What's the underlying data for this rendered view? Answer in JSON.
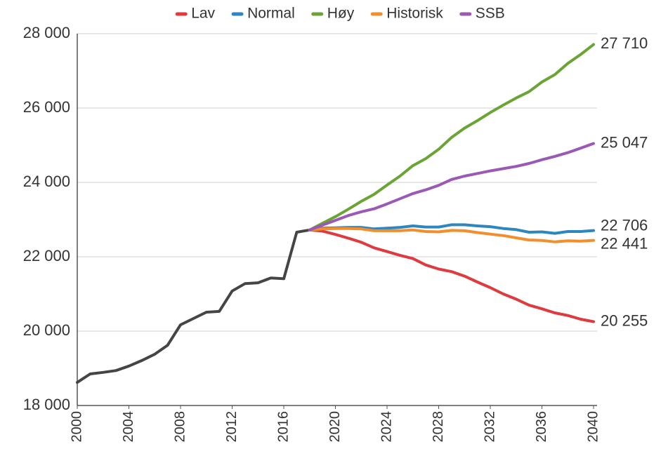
{
  "chart_data": {
    "type": "line",
    "x": [
      2000,
      2001,
      2002,
      2003,
      2004,
      2005,
      2006,
      2007,
      2008,
      2009,
      2010,
      2011,
      2012,
      2013,
      2014,
      2015,
      2016,
      2017,
      2018,
      2019,
      2020,
      2021,
      2022,
      2023,
      2024,
      2025,
      2026,
      2027,
      2028,
      2029,
      2030,
      2031,
      2032,
      2033,
      2034,
      2035,
      2036,
      2037,
      2038,
      2039,
      2040
    ],
    "xlim": [
      2000,
      2040
    ],
    "xticks": [
      2000,
      2004,
      2008,
      2012,
      2016,
      2020,
      2024,
      2028,
      2032,
      2036,
      2040
    ],
    "ylim": [
      18000,
      28000
    ],
    "yticks": [
      {
        "value": 18000,
        "label": "18 000"
      },
      {
        "value": 20000,
        "label": "20 000"
      },
      {
        "value": 22000,
        "label": "22 000"
      },
      {
        "value": 24000,
        "label": "24 000"
      },
      {
        "value": 26000,
        "label": "26 000"
      },
      {
        "value": 28000,
        "label": "28 000"
      }
    ],
    "grid": true,
    "legend": "top",
    "series": [
      {
        "color": "#454545",
        "values": [
          18620,
          18850,
          18890,
          18940,
          19060,
          19210,
          19380,
          19620,
          20170,
          20340,
          20510,
          20530,
          21080,
          21280,
          21300,
          21430,
          21410,
          22660,
          22720,
          null,
          null,
          null,
          null,
          null,
          null,
          null,
          null,
          null,
          null,
          null,
          null,
          null,
          null,
          null,
          null,
          null,
          null,
          null,
          null,
          null,
          null
        ]
      },
      {
        "name": "Lav",
        "color": "#e0393e",
        "values": [
          null,
          null,
          null,
          null,
          null,
          null,
          null,
          null,
          null,
          null,
          null,
          null,
          null,
          null,
          null,
          null,
          null,
          null,
          22720,
          22690,
          22600,
          22500,
          22390,
          22240,
          22140,
          22040,
          21950,
          21780,
          21670,
          21600,
          21480,
          21320,
          21170,
          21000,
          20860,
          20700,
          20600,
          20490,
          20420,
          20320,
          20255
        ],
        "value_labels": [
          null,
          null,
          null,
          null,
          null,
          null,
          null,
          null,
          null,
          null,
          null,
          null,
          null,
          null,
          null,
          null,
          null,
          null,
          null,
          null,
          null,
          null,
          null,
          null,
          null,
          null,
          null,
          null,
          null,
          null,
          null,
          null,
          null,
          null,
          null,
          null,
          null,
          null,
          null,
          null,
          "20 255"
        ]
      },
      {
        "name": "Normal",
        "color": "#2e86c1",
        "values": [
          null,
          null,
          null,
          null,
          null,
          null,
          null,
          null,
          null,
          null,
          null,
          null,
          null,
          null,
          null,
          null,
          null,
          null,
          22720,
          22770,
          22780,
          22790,
          22790,
          22750,
          22770,
          22790,
          22830,
          22800,
          22800,
          22860,
          22860,
          22830,
          22810,
          22760,
          22730,
          22660,
          22670,
          22630,
          22680,
          22680,
          22706
        ],
        "value_labels": [
          null,
          null,
          null,
          null,
          null,
          null,
          null,
          null,
          null,
          null,
          null,
          null,
          null,
          null,
          null,
          null,
          null,
          null,
          null,
          null,
          null,
          null,
          null,
          null,
          null,
          null,
          null,
          null,
          null,
          null,
          null,
          null,
          null,
          null,
          null,
          null,
          null,
          null,
          null,
          null,
          "22 706"
        ]
      },
      {
        "name": "Høy",
        "color": "#6aa434",
        "values": [
          null,
          null,
          null,
          null,
          null,
          null,
          null,
          null,
          null,
          null,
          null,
          null,
          null,
          null,
          null,
          null,
          null,
          null,
          22720,
          22900,
          23080,
          23280,
          23490,
          23680,
          23930,
          24170,
          24450,
          24640,
          24890,
          25210,
          25460,
          25660,
          25880,
          26080,
          26270,
          26440,
          26700,
          26900,
          27200,
          27440,
          27710
        ],
        "value_labels": [
          null,
          null,
          null,
          null,
          null,
          null,
          null,
          null,
          null,
          null,
          null,
          null,
          null,
          null,
          null,
          null,
          null,
          null,
          null,
          null,
          null,
          null,
          null,
          null,
          null,
          null,
          null,
          null,
          null,
          null,
          null,
          null,
          null,
          null,
          null,
          null,
          null,
          null,
          null,
          null,
          "27 710"
        ]
      },
      {
        "name": "Historisk",
        "color": "#f28e2b",
        "values": [
          null,
          null,
          null,
          null,
          null,
          null,
          null,
          null,
          null,
          null,
          null,
          null,
          null,
          null,
          null,
          null,
          null,
          null,
          22720,
          22750,
          22760,
          22760,
          22750,
          22700,
          22700,
          22700,
          22720,
          22680,
          22670,
          22710,
          22700,
          22650,
          22610,
          22570,
          22510,
          22450,
          22440,
          22400,
          22430,
          22420,
          22441
        ],
        "value_labels": [
          null,
          null,
          null,
          null,
          null,
          null,
          null,
          null,
          null,
          null,
          null,
          null,
          null,
          null,
          null,
          null,
          null,
          null,
          null,
          null,
          null,
          null,
          null,
          null,
          null,
          null,
          null,
          null,
          null,
          null,
          null,
          null,
          null,
          null,
          null,
          null,
          null,
          null,
          null,
          null,
          "22 441"
        ]
      },
      {
        "name": "SSB",
        "color": "#9b59b6",
        "values": [
          null,
          null,
          null,
          null,
          null,
          null,
          null,
          null,
          null,
          null,
          null,
          null,
          null,
          null,
          null,
          null,
          null,
          null,
          22720,
          22850,
          22980,
          23110,
          23210,
          23290,
          23420,
          23560,
          23700,
          23800,
          23920,
          24080,
          24170,
          24240,
          24310,
          24370,
          24430,
          24510,
          24610,
          24700,
          24800,
          24920,
          25047
        ],
        "value_labels": [
          null,
          null,
          null,
          null,
          null,
          null,
          null,
          null,
          null,
          null,
          null,
          null,
          null,
          null,
          null,
          null,
          null,
          null,
          null,
          null,
          null,
          null,
          null,
          null,
          null,
          null,
          null,
          null,
          null,
          null,
          null,
          null,
          null,
          null,
          null,
          null,
          null,
          null,
          null,
          null,
          "25 047"
        ]
      }
    ]
  }
}
